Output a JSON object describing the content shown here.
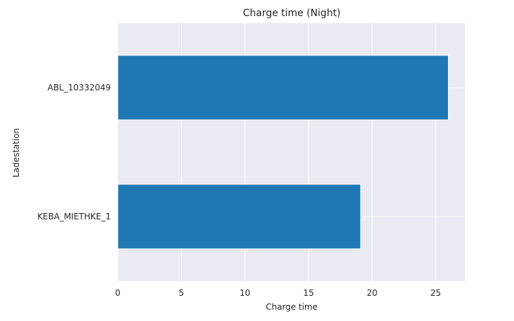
{
  "chart_data": {
    "type": "bar",
    "orientation": "horizontal",
    "title": "Charge time (Night)",
    "xlabel": "Charge time",
    "ylabel": "Ladestation",
    "categories": [
      "KEBA_MIETHKE_1",
      "ABL_10332049"
    ],
    "values": [
      19.1,
      26.0
    ],
    "xlim": [
      0,
      27.3
    ],
    "xticks": [
      0,
      5,
      10,
      15,
      20,
      25
    ],
    "grid": true,
    "colors": {
      "bar": "#1f77b4",
      "background": "#eaeaf2",
      "grid": "#ffffff"
    }
  }
}
